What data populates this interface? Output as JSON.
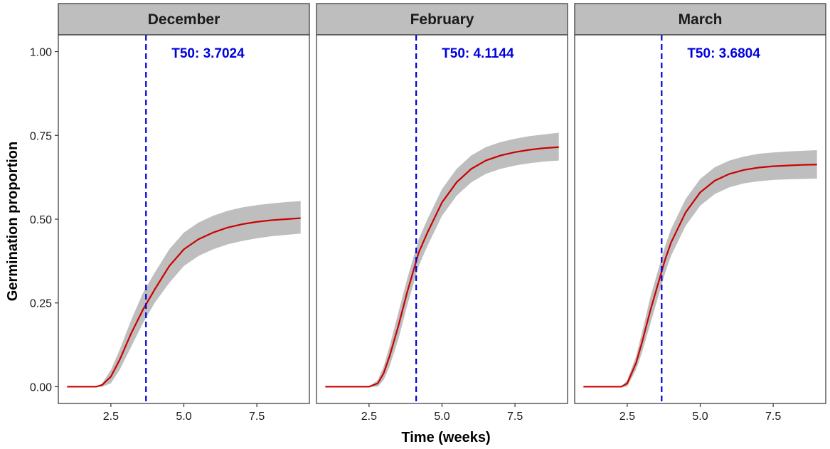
{
  "chart_data": {
    "type": "line",
    "facet_by": "month",
    "xlabel": "Time (weeks)",
    "ylabel": "Germination proportion",
    "xlim": [
      0.7,
      9.3
    ],
    "ylim": [
      -0.05,
      1.05
    ],
    "x_ticks": [
      2.5,
      5.0,
      7.5
    ],
    "x_tick_labels": [
      "2.5",
      "5.0",
      "7.5"
    ],
    "y_ticks": [
      0.0,
      0.25,
      0.5,
      0.75,
      1.0
    ],
    "y_tick_labels": [
      "0.00",
      "0.25",
      "0.50",
      "0.75",
      "1.00"
    ],
    "grid": false,
    "colors": {
      "line": "#cc0000",
      "ribbon": "#bebebe",
      "t50_line": "#0000dd",
      "t50_text": "#0000dd",
      "strip_bg": "#bebebe",
      "panel_border": "#333333"
    },
    "panels": [
      {
        "title": "December",
        "t50": 3.7024,
        "t50_label": "T50: 3.7024",
        "x": [
          1.0,
          2.0,
          2.2,
          2.5,
          2.8,
          3.2,
          3.6,
          4.0,
          4.5,
          5.0,
          5.5,
          6.0,
          6.5,
          7.0,
          7.5,
          8.0,
          8.5,
          9.0
        ],
        "y": [
          0.0,
          0.0,
          0.005,
          0.03,
          0.08,
          0.16,
          0.23,
          0.29,
          0.36,
          0.41,
          0.44,
          0.46,
          0.475,
          0.485,
          0.492,
          0.497,
          0.5,
          0.503
        ],
        "y_low": [
          0.0,
          0.0,
          0.0,
          0.01,
          0.05,
          0.12,
          0.19,
          0.25,
          0.31,
          0.36,
          0.39,
          0.41,
          0.425,
          0.435,
          0.443,
          0.449,
          0.453,
          0.457
        ],
        "y_high": [
          0.0,
          0.0,
          0.01,
          0.05,
          0.11,
          0.2,
          0.28,
          0.34,
          0.41,
          0.46,
          0.49,
          0.51,
          0.525,
          0.535,
          0.542,
          0.547,
          0.551,
          0.554
        ]
      },
      {
        "title": "February",
        "t50": 4.1144,
        "t50_label": "T50: 4.1144",
        "x": [
          1.0,
          2.5,
          2.8,
          3.0,
          3.2,
          3.5,
          3.8,
          4.0,
          4.2,
          4.5,
          5.0,
          5.5,
          6.0,
          6.5,
          7.0,
          7.5,
          8.0,
          8.5,
          9.0
        ],
        "y": [
          0.0,
          0.0,
          0.01,
          0.04,
          0.09,
          0.18,
          0.28,
          0.34,
          0.4,
          0.46,
          0.55,
          0.61,
          0.65,
          0.675,
          0.69,
          0.7,
          0.707,
          0.712,
          0.715
        ],
        "y_low": [
          0.0,
          0.0,
          0.0,
          0.02,
          0.06,
          0.14,
          0.24,
          0.3,
          0.36,
          0.42,
          0.51,
          0.57,
          0.61,
          0.635,
          0.65,
          0.66,
          0.667,
          0.672,
          0.675
        ],
        "y_high": [
          0.0,
          0.0,
          0.02,
          0.06,
          0.12,
          0.22,
          0.32,
          0.38,
          0.44,
          0.5,
          0.59,
          0.65,
          0.69,
          0.715,
          0.73,
          0.74,
          0.748,
          0.753,
          0.758
        ]
      },
      {
        "title": "March",
        "t50": 3.6804,
        "t50_label": "T50: 3.6804",
        "x": [
          1.0,
          2.3,
          2.5,
          2.8,
          3.0,
          3.3,
          3.6,
          3.8,
          4.0,
          4.5,
          5.0,
          5.5,
          6.0,
          6.5,
          7.0,
          7.5,
          8.0,
          8.5,
          9.0
        ],
        "y": [
          0.0,
          0.0,
          0.01,
          0.07,
          0.13,
          0.23,
          0.32,
          0.38,
          0.43,
          0.52,
          0.58,
          0.615,
          0.635,
          0.647,
          0.654,
          0.658,
          0.66,
          0.662,
          0.663
        ],
        "y_low": [
          0.0,
          0.0,
          0.0,
          0.05,
          0.1,
          0.19,
          0.28,
          0.34,
          0.39,
          0.48,
          0.54,
          0.575,
          0.595,
          0.607,
          0.613,
          0.617,
          0.619,
          0.62,
          0.621
        ],
        "y_high": [
          0.0,
          0.0,
          0.02,
          0.09,
          0.16,
          0.27,
          0.36,
          0.42,
          0.47,
          0.56,
          0.62,
          0.655,
          0.675,
          0.687,
          0.695,
          0.699,
          0.702,
          0.704,
          0.706
        ]
      }
    ]
  }
}
